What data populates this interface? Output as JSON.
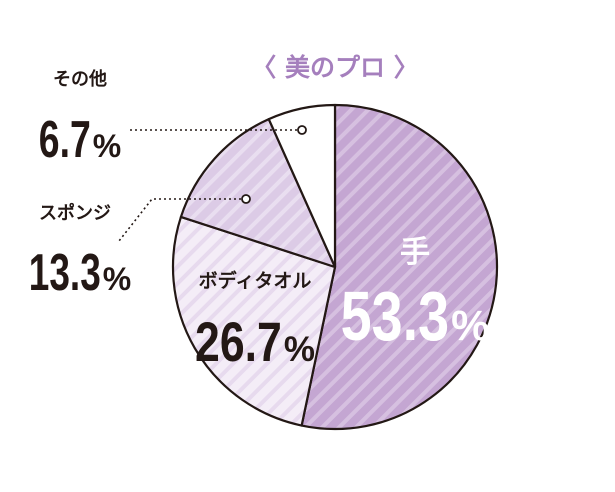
{
  "chart_data": {
    "type": "pie",
    "title": "〈 美のプロ 〉",
    "slices": [
      {
        "label": "手",
        "value": 53.3,
        "num": "53.3",
        "unit": "%",
        "color": "#c4a6d2",
        "inside": true
      },
      {
        "label": "ボディタオル",
        "value": 26.7,
        "num": "26.7",
        "unit": "%",
        "color": "#f4edf7",
        "inside": true
      },
      {
        "label": "スポンジ",
        "value": 13.3,
        "num": "13.3",
        "unit": "%",
        "color": "#dccbe6",
        "inside": false
      },
      {
        "label": "その他",
        "value": 6.7,
        "num": "6.7",
        "unit": "%",
        "color": "#ffffff",
        "inside": false
      }
    ],
    "colors": {
      "title": "#a57fbd",
      "outline": "#231815",
      "text_dark": "#231815",
      "text_light": "#ffffff"
    }
  }
}
